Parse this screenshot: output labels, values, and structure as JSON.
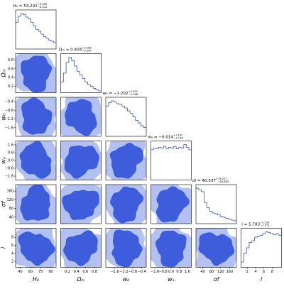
{
  "chart_data": {
    "type": "corner",
    "color": "#2f4fd6",
    "contour_colors": [
      "#b3c1f1",
      "#3d5ddc"
    ],
    "hist_ylim": [
      0,
      1.1
    ],
    "parameters": [
      {
        "label": "H₀",
        "title": "H₀ = 53.241",
        "upper": "+9.169",
        "lower": "−6.232",
        "lim": [
          38,
          98
        ],
        "ticks": [
          45,
          60,
          75,
          90
        ],
        "bins": [
          38,
          41.75,
          45.5,
          49.25,
          53,
          56.75,
          60.5,
          64.25,
          68,
          71.75,
          75.5,
          79.25,
          83,
          86.75,
          90.5,
          94.25,
          98
        ],
        "counts": [
          0.75,
          0.92,
          1.0,
          0.97,
          0.9,
          0.85,
          0.75,
          0.65,
          0.55,
          0.5,
          0.42,
          0.35,
          0.3,
          0.25,
          0.22,
          0.18
        ]
      },
      {
        "label": "Ωₘ",
        "title": "Ωₘ = 0.404",
        "upper": "+0.206",
        "lower": "−0.167",
        "lim": [
          0.05,
          0.95
        ],
        "ticks": [
          0.2,
          0.4,
          0.6,
          0.8
        ],
        "bins": [
          0.05,
          0.11,
          0.17,
          0.23,
          0.29,
          0.35,
          0.41,
          0.47,
          0.53,
          0.59,
          0.65,
          0.71,
          0.77,
          0.83,
          0.89,
          0.95
        ],
        "counts": [
          0.3,
          0.55,
          0.85,
          1.0,
          0.9,
          0.75,
          0.6,
          0.5,
          0.4,
          0.3,
          0.22,
          0.18,
          0.12,
          0.08,
          0.05
        ]
      },
      {
        "label": "w₀",
        "title": "w₀ = −1.202",
        "upper": "+0.502",
        "lower": "−0.466",
        "lim": [
          -2,
          -0.2
        ],
        "ticks": [
          {
            "value": -1.6,
            "label": "−1.6"
          },
          {
            "value": -1.2,
            "label": "−1.2"
          },
          {
            "value": -0.8,
            "label": "−0.8"
          },
          {
            "value": -0.4,
            "label": "−0.4"
          }
        ],
        "bins": [
          -2,
          -1.88,
          -1.76,
          -1.64,
          -1.52,
          -1.4,
          -1.28,
          -1.16,
          -1.04,
          -0.92,
          -0.8,
          -0.68,
          -0.56,
          -0.44,
          -0.32,
          -0.2
        ],
        "counts": [
          0.85,
          0.95,
          1.0,
          0.97,
          0.92,
          0.9,
          0.85,
          0.8,
          0.72,
          0.65,
          0.55,
          0.45,
          0.38,
          0.3,
          0.25
        ]
      },
      {
        "label": "wₐ",
        "title": "wₐ = −0.014",
        "upper": "+1.102",
        "lower": "−1.108",
        "lim": [
          -2,
          2
        ],
        "ticks": [
          {
            "value": -1.6,
            "label": "−1.6"
          },
          {
            "value": -0.8,
            "label": "−0.8"
          },
          {
            "value": 0,
            "label": "0.0"
          },
          0.8,
          1.6
        ],
        "bins": [
          -2,
          -1.75,
          -1.5,
          -1.25,
          -1,
          -0.75,
          -0.5,
          -0.25,
          0,
          0.25,
          0.5,
          0.75,
          1,
          1.25,
          1.5,
          1.75,
          2
        ],
        "counts": [
          0.85,
          0.9,
          0.88,
          0.92,
          0.9,
          0.95,
          0.88,
          0.92,
          0.9,
          0.95,
          0.88,
          0.92,
          0.9,
          1.0,
          0.92,
          0.85
        ]
      },
      {
        "label": "σf",
        "title": "σf = 40.537",
        "upper": "+76.271",
        "lower": "−16.809",
        "lim": [
          10,
          190
        ],
        "ticks": [
          40,
          80,
          120,
          160
        ],
        "bins": [
          10,
          22,
          34,
          46,
          58,
          70,
          82,
          94,
          106,
          118,
          130,
          142,
          154,
          166,
          178,
          190
        ],
        "counts": [
          1.0,
          0.95,
          0.9,
          0.6,
          0.45,
          0.35,
          0.3,
          0.28,
          0.25,
          0.2,
          0.18,
          0.15,
          0.12,
          0.1,
          0.08
        ]
      },
      {
        "label": "l",
        "title": "l = 5.783",
        "upper": "+2.533",
        "lower": "−2.571",
        "lim": [
          0.5,
          10.25
        ],
        "ticks": [
          2,
          4,
          6,
          8
        ],
        "bins": [
          0.5,
          1.15,
          1.8,
          2.45,
          3.1,
          3.75,
          4.4,
          5.05,
          5.7,
          6.35,
          7,
          7.65,
          8.3,
          8.95,
          9.6,
          10.25
        ],
        "counts": [
          0.15,
          0.4,
          0.55,
          0.7,
          0.75,
          0.85,
          0.88,
          0.9,
          0.95,
          1.0,
          0.98,
          0.95,
          0.92,
          0.95,
          0.9
        ]
      }
    ]
  }
}
